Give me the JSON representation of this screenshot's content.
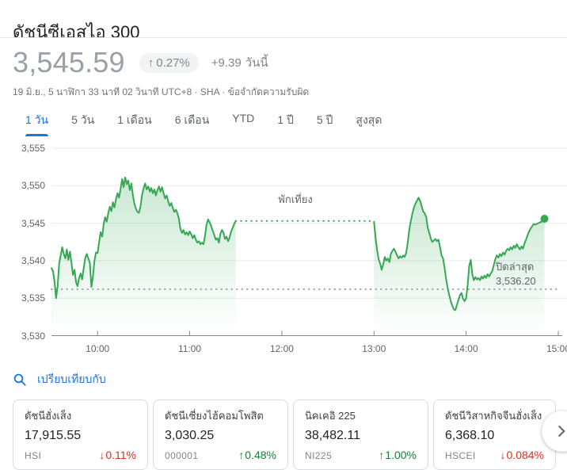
{
  "header": {
    "title": "ดัชนีซีเอสไอ 300"
  },
  "quote": {
    "price": "3,545.59",
    "change_badge": {
      "arrow": "↑",
      "percent": "0.27%"
    },
    "change_absolute": "+9.39",
    "change_period": "วันนี้",
    "meta": "19 มิ.ย., 5 นาฬิกา 33 นาที 02 วินาที UTC+8 · SHA ·",
    "disclaimer": "ข้อจำกัดความรับผิด"
  },
  "range_tabs": [
    {
      "label": "1 วัน",
      "active": true
    },
    {
      "label": "5 วัน",
      "active": false
    },
    {
      "label": "1 เดือน",
      "active": false
    },
    {
      "label": "6 เดือน",
      "active": false
    },
    {
      "label": "YTD",
      "active": false
    },
    {
      "label": "1 ปี",
      "active": false
    },
    {
      "label": "5 ปี",
      "active": false
    },
    {
      "label": "สูงสุด",
      "active": false
    }
  ],
  "chart_data": {
    "type": "area",
    "title": "ดัชนีซีเอสไอ 300 — 1 วัน",
    "line_color": "#34a853",
    "grid": true,
    "last_price": 3545.59,
    "x_axis": {
      "range_hours": [
        9.5,
        15
      ],
      "tick_hours": [
        10,
        11,
        12,
        13,
        14,
        15
      ],
      "tick_labels": [
        "10:00",
        "11:00",
        "12:00",
        "13:00",
        "14:00",
        "15:00"
      ]
    },
    "y_axis": {
      "range": [
        3530,
        3555
      ],
      "tick_values": [
        3530,
        3535,
        3540,
        3545,
        3550,
        3555
      ],
      "tick_labels": [
        "3,530",
        "3,535",
        "3,540",
        "3,545",
        "3,550",
        "3,555"
      ]
    },
    "previous_close": {
      "label": "ปิดล่าสุด",
      "display": "3,536.20",
      "value": 3536.2
    },
    "lunch_break": {
      "label": "พักเที่ยง",
      "start_hour": 11.5,
      "end_hour": 13
    },
    "series": [
      {
        "name": "morning-session",
        "points": [
          [
            9.5,
            3539
          ],
          [
            9.517,
            3538.6
          ],
          [
            9.533,
            3537.3
          ],
          [
            9.55,
            3535
          ],
          [
            9.567,
            3536.6
          ],
          [
            9.583,
            3539.6
          ],
          [
            9.6,
            3540.7
          ],
          [
            9.617,
            3541.8
          ],
          [
            9.633,
            3540.9
          ],
          [
            9.65,
            3540.3
          ],
          [
            9.667,
            3541.5
          ],
          [
            9.683,
            3540.1
          ],
          [
            9.7,
            3541.2
          ],
          [
            9.717,
            3539.7
          ],
          [
            9.733,
            3538.1
          ],
          [
            9.75,
            3538.8
          ],
          [
            9.767,
            3537.1
          ],
          [
            9.783,
            3536.6
          ],
          [
            9.8,
            3537.7
          ],
          [
            9.817,
            3538.3
          ],
          [
            9.833,
            3537.5
          ],
          [
            9.85,
            3539
          ],
          [
            9.867,
            3540.4
          ],
          [
            9.883,
            3540.9
          ],
          [
            9.9,
            3540.3
          ],
          [
            9.917,
            3539.7
          ],
          [
            9.933,
            3536.5
          ],
          [
            9.95,
            3537.9
          ],
          [
            9.967,
            3540
          ],
          [
            9.983,
            3541.1
          ],
          [
            10,
            3541
          ],
          [
            10.017,
            3542.5
          ],
          [
            10.033,
            3543.8
          ],
          [
            10.05,
            3543.2
          ],
          [
            10.067,
            3544.9
          ],
          [
            10.083,
            3545.8
          ],
          [
            10.1,
            3545.2
          ],
          [
            10.117,
            3546.4
          ],
          [
            10.133,
            3547.2
          ],
          [
            10.15,
            3546.6
          ],
          [
            10.167,
            3547.8
          ],
          [
            10.183,
            3547.1
          ],
          [
            10.2,
            3548.2
          ],
          [
            10.217,
            3549
          ],
          [
            10.233,
            3548.4
          ],
          [
            10.25,
            3549.6
          ],
          [
            10.267,
            3550.9
          ],
          [
            10.283,
            3549.8
          ],
          [
            10.3,
            3551.1
          ],
          [
            10.317,
            3550.2
          ],
          [
            10.333,
            3550.7
          ],
          [
            10.35,
            3549.4
          ],
          [
            10.367,
            3550.3
          ],
          [
            10.383,
            3548.8
          ],
          [
            10.4,
            3547.6
          ],
          [
            10.417,
            3546.9
          ],
          [
            10.433,
            3546.5
          ],
          [
            10.45,
            3546.4
          ],
          [
            10.467,
            3547.3
          ],
          [
            10.483,
            3548.8
          ],
          [
            10.5,
            3549.7
          ],
          [
            10.517,
            3550.3
          ],
          [
            10.533,
            3549.5
          ],
          [
            10.55,
            3549.9
          ],
          [
            10.567,
            3549.2
          ],
          [
            10.583,
            3549.7
          ],
          [
            10.6,
            3549
          ],
          [
            10.617,
            3549.5
          ],
          [
            10.633,
            3548.7
          ],
          [
            10.65,
            3549.4
          ],
          [
            10.667,
            3549.9
          ],
          [
            10.683,
            3549.2
          ],
          [
            10.7,
            3549.8
          ],
          [
            10.717,
            3549
          ],
          [
            10.733,
            3548.3
          ],
          [
            10.75,
            3548.7
          ],
          [
            10.767,
            3547.9
          ],
          [
            10.783,
            3547.3
          ],
          [
            10.8,
            3547.7
          ],
          [
            10.817,
            3547
          ],
          [
            10.833,
            3546.5
          ],
          [
            10.85,
            3546.8
          ],
          [
            10.867,
            3546.3
          ],
          [
            10.883,
            3545.6
          ],
          [
            10.9,
            3544.2
          ],
          [
            10.917,
            3543.7
          ],
          [
            10.933,
            3544.1
          ],
          [
            10.95,
            3543.5
          ],
          [
            10.967,
            3543.8
          ],
          [
            10.983,
            3543.4
          ],
          [
            11,
            3543.9
          ],
          [
            11.017,
            3543.5
          ],
          [
            11.033,
            3543
          ],
          [
            11.05,
            3543.4
          ],
          [
            11.067,
            3542.8
          ],
          [
            11.083,
            3542.4
          ],
          [
            11.1,
            3542.6
          ],
          [
            11.117,
            3542.2
          ],
          [
            11.133,
            3542.4
          ],
          [
            11.15,
            3542.2
          ],
          [
            11.167,
            3543.4
          ],
          [
            11.183,
            3544.8
          ],
          [
            11.2,
            3545.5
          ],
          [
            11.217,
            3545.1
          ],
          [
            11.233,
            3544.6
          ],
          [
            11.25,
            3544
          ],
          [
            11.267,
            3543.4
          ],
          [
            11.283,
            3542.8
          ],
          [
            11.3,
            3543
          ],
          [
            11.317,
            3542.4
          ],
          [
            11.333,
            3543.6
          ],
          [
            11.35,
            3544.1
          ],
          [
            11.367,
            3543.7
          ],
          [
            11.383,
            3542.9
          ],
          [
            11.4,
            3543.2
          ],
          [
            11.417,
            3542.6
          ],
          [
            11.433,
            3543.1
          ],
          [
            11.45,
            3543.9
          ],
          [
            11.467,
            3544.4
          ],
          [
            11.483,
            3544.9
          ],
          [
            11.5,
            3545.3
          ]
        ]
      },
      {
        "name": "afternoon-session",
        "points": [
          [
            13,
            3545.2
          ],
          [
            13.017,
            3543
          ],
          [
            13.033,
            3541.5
          ],
          [
            13.05,
            3540.2
          ],
          [
            13.067,
            3539.6
          ],
          [
            13.083,
            3538.8
          ],
          [
            13.1,
            3539.5
          ],
          [
            13.117,
            3540.5
          ],
          [
            13.133,
            3540
          ],
          [
            13.15,
            3540.3
          ],
          [
            13.167,
            3539.8
          ],
          [
            13.183,
            3540.9
          ],
          [
            13.2,
            3541.3
          ],
          [
            13.217,
            3541.6
          ],
          [
            13.233,
            3541.2
          ],
          [
            13.25,
            3540.7
          ],
          [
            13.267,
            3540.3
          ],
          [
            13.283,
            3540.6
          ],
          [
            13.3,
            3540.4
          ],
          [
            13.317,
            3540.7
          ],
          [
            13.333,
            3540.5
          ],
          [
            13.35,
            3541.1
          ],
          [
            13.367,
            3542.5
          ],
          [
            13.383,
            3544.1
          ],
          [
            13.4,
            3545.3
          ],
          [
            13.417,
            3546.3
          ],
          [
            13.433,
            3547.1
          ],
          [
            13.45,
            3547.6
          ],
          [
            13.467,
            3548
          ],
          [
            13.483,
            3548.4
          ],
          [
            13.5,
            3548
          ],
          [
            13.517,
            3547.3
          ],
          [
            13.533,
            3546.6
          ],
          [
            13.55,
            3546.3
          ],
          [
            13.567,
            3545.8
          ],
          [
            13.583,
            3544.4
          ],
          [
            13.6,
            3543.7
          ],
          [
            13.617,
            3542.9
          ],
          [
            13.633,
            3542.5
          ],
          [
            13.65,
            3542.7
          ],
          [
            13.667,
            3542.9
          ],
          [
            13.683,
            3542.6
          ],
          [
            13.7,
            3542.8
          ],
          [
            13.717,
            3541.8
          ],
          [
            13.733,
            3540.7
          ],
          [
            13.75,
            3540.3
          ],
          [
            13.767,
            3539
          ],
          [
            13.783,
            3537.5
          ],
          [
            13.8,
            3536.3
          ],
          [
            13.817,
            3535.4
          ],
          [
            13.833,
            3534.6
          ],
          [
            13.85,
            3534
          ],
          [
            13.867,
            3533.5
          ],
          [
            13.883,
            3533.4
          ],
          [
            13.9,
            3534.1
          ],
          [
            13.917,
            3534.8
          ],
          [
            13.933,
            3535.4
          ],
          [
            13.95,
            3535.7
          ],
          [
            13.967,
            3534.9
          ],
          [
            13.983,
            3534.6
          ],
          [
            14,
            3535
          ],
          [
            14.017,
            3536.8
          ],
          [
            14.033,
            3539.3
          ],
          [
            14.05,
            3540.1
          ],
          [
            14.067,
            3538.2
          ],
          [
            14.083,
            3537.4
          ],
          [
            14.1,
            3537.8
          ],
          [
            14.117,
            3537.5
          ],
          [
            14.133,
            3537.7
          ],
          [
            14.15,
            3537.4
          ],
          [
            14.167,
            3537.9
          ],
          [
            14.183,
            3537.6
          ],
          [
            14.2,
            3538
          ],
          [
            14.217,
            3537.7
          ],
          [
            14.233,
            3538.2
          ],
          [
            14.25,
            3537.9
          ],
          [
            14.267,
            3538.3
          ],
          [
            14.283,
            3538.6
          ],
          [
            14.3,
            3539.4
          ],
          [
            14.317,
            3540.2
          ],
          [
            14.333,
            3540.7
          ],
          [
            14.35,
            3540.4
          ],
          [
            14.367,
            3540.9
          ],
          [
            14.383,
            3540.6
          ],
          [
            14.4,
            3541.1
          ],
          [
            14.417,
            3540.8
          ],
          [
            14.433,
            3541.3
          ],
          [
            14.45,
            3541.6
          ],
          [
            14.467,
            3541.4
          ],
          [
            14.483,
            3541.8
          ],
          [
            14.5,
            3541.5
          ],
          [
            14.517,
            3542
          ],
          [
            14.533,
            3541.7
          ],
          [
            14.55,
            3542.2
          ],
          [
            14.567,
            3541.8
          ],
          [
            14.583,
            3541.5
          ],
          [
            14.6,
            3541.9
          ],
          [
            14.617,
            3541.6
          ],
          [
            14.633,
            3542.3
          ],
          [
            14.65,
            3542.8
          ],
          [
            14.667,
            3543.4
          ],
          [
            14.683,
            3543.9
          ],
          [
            14.7,
            3544.3
          ],
          [
            14.717,
            3544.6
          ],
          [
            14.733,
            3544.9
          ],
          [
            14.75,
            3544.8
          ],
          [
            14.783,
            3545
          ],
          [
            14.817,
            3545.2
          ],
          [
            14.85,
            3545.59
          ]
        ]
      }
    ]
  },
  "compare": {
    "label": "เปรียบเทียบกับ"
  },
  "related_indices": [
    {
      "name": "ดัชนีฮั่งเส็ง",
      "value": "17,915.55",
      "ticker": "HSI",
      "direction": "down",
      "arrow": "↓",
      "change": "0.11%"
    },
    {
      "name": "ดัชนีเซี่ยงไฮ้คอมโพสิต",
      "value": "3,030.25",
      "ticker": "000001",
      "direction": "up",
      "arrow": "↑",
      "change": "0.48%"
    },
    {
      "name": "นิคเคอิ 225",
      "value": "38,482.11",
      "ticker": "NI225",
      "direction": "up",
      "arrow": "↑",
      "change": "1.00%"
    },
    {
      "name": "ดัชนีวิสาหกิจจีนฮั่งเส็ง",
      "value": "6,368.10",
      "ticker": "HSCEI",
      "direction": "down",
      "arrow": "↓",
      "change": "0.084%"
    }
  ],
  "colors": {
    "accent": "#1a73e8",
    "line": "#34a853",
    "up": "#188038",
    "down": "#d93025",
    "grid": "#e8eaed"
  }
}
